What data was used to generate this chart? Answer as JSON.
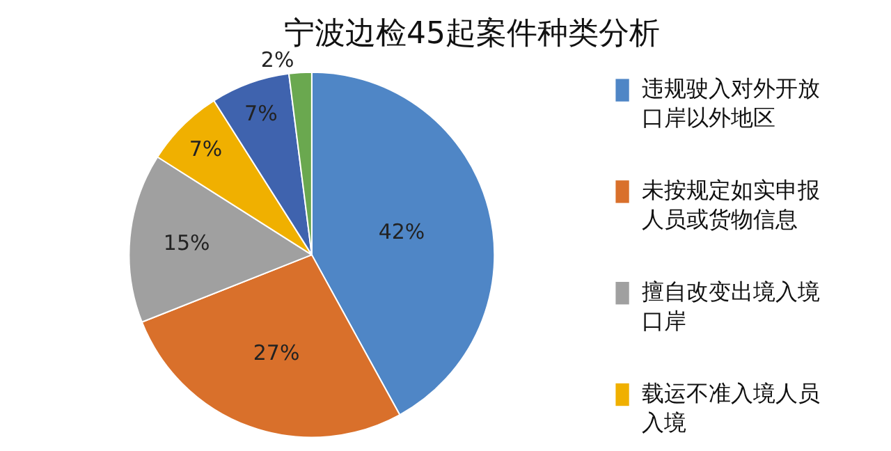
{
  "chart_data": {
    "type": "pie",
    "title": "宁波边检45起案件种类分析",
    "categories": [
      "违规驶入对外开放口岸以外地区",
      "未按规定如实申报人员或货物信息",
      "擅自改变出境入境口岸",
      "载运不准入境人员入境",
      null,
      null
    ],
    "values": [
      42,
      27,
      15,
      7,
      7,
      2
    ],
    "value_labels": [
      "42%",
      "27%",
      "15%",
      "7%",
      "7%",
      "2%"
    ],
    "colors": [
      "#4f86c6",
      "#d9702b",
      "#a0a0a0",
      "#f0b000",
      "#3f63ae",
      "#6aa84f"
    ],
    "legend": "right"
  }
}
